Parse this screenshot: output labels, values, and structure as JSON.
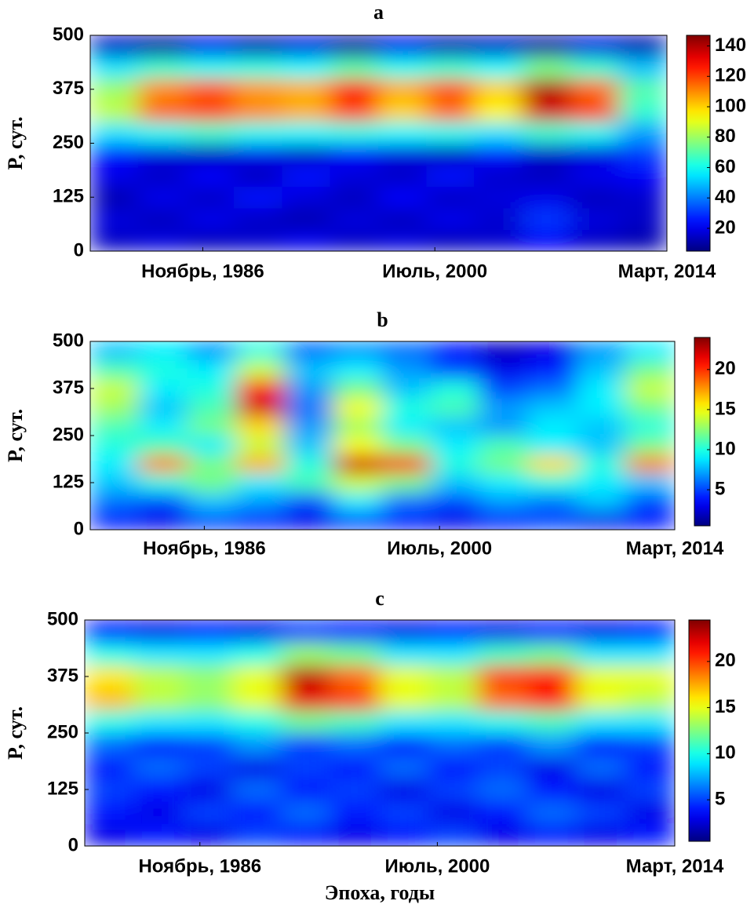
{
  "chart_data": [
    {
      "type": "heatmap",
      "title": "a",
      "ylabel": "P, сут.",
      "colormap": "jet",
      "x_bins": [
        1980.2,
        1983.03,
        1985.86,
        1988.69,
        1991.52,
        1994.35,
        1997.18,
        2000.01,
        2002.84,
        2005.67,
        2008.5,
        2011.33,
        2014.17
      ],
      "y_bins": [
        0,
        50,
        100,
        150,
        200,
        250,
        300,
        350,
        400,
        450,
        500
      ],
      "z": [
        [
          15,
          18,
          14,
          16,
          20,
          15,
          18,
          14,
          16,
          22,
          15,
          12
        ],
        [
          18,
          14,
          20,
          15,
          12,
          18,
          14,
          20,
          16,
          30,
          18,
          15
        ],
        [
          12,
          20,
          15,
          25,
          18,
          14,
          22,
          15,
          18,
          20,
          14,
          16
        ],
        [
          20,
          15,
          22,
          14,
          25,
          18,
          15,
          24,
          16,
          14,
          20,
          22
        ],
        [
          25,
          18,
          14,
          20,
          15,
          22,
          18,
          14,
          25,
          15,
          18,
          30
        ],
        [
          55,
          60,
          65,
          60,
          58,
          62,
          58,
          60,
          55,
          65,
          60,
          45
        ],
        [
          85,
          115,
          120,
          110,
          105,
          120,
          100,
          115,
          95,
          135,
          120,
          65
        ],
        [
          80,
          110,
          118,
          108,
          105,
          128,
          105,
          118,
          100,
          140,
          115,
          70
        ],
        [
          55,
          65,
          60,
          62,
          58,
          70,
          60,
          65,
          58,
          75,
          65,
          50
        ],
        [
          15,
          10,
          20,
          12,
          18,
          10,
          20,
          12,
          15,
          10,
          18,
          12
        ]
      ],
      "xlim": [
        1980.2,
        2014.17
      ],
      "xticks": [
        {
          "value": 1986.83,
          "label": "Ноябрь, 1986"
        },
        {
          "value": 2000.5,
          "label": "Июль, 2000"
        },
        {
          "value": 2014.17,
          "label": "Март, 2014"
        }
      ],
      "ylim": [
        0,
        500
      ],
      "yticks": [
        0,
        125,
        250,
        375,
        500
      ],
      "clim": [
        5,
        147
      ],
      "cticks": [
        20,
        40,
        60,
        80,
        100,
        120,
        140
      ]
    },
    {
      "type": "heatmap",
      "title": "b",
      "ylabel": "P, сут.",
      "colormap": "jet",
      "x_bins": [
        1980.2,
        1983.03,
        1985.86,
        1988.69,
        1991.52,
        1994.35,
        1997.18,
        2000.01,
        2002.84,
        2005.67,
        2008.5,
        2011.33,
        2014.17
      ],
      "y_bins": [
        0,
        50,
        100,
        150,
        200,
        250,
        300,
        350,
        400,
        450,
        500
      ],
      "z": [
        [
          4,
          3,
          5,
          4,
          3,
          5,
          4,
          3,
          4,
          5,
          3,
          4
        ],
        [
          6,
          5,
          8,
          7,
          5,
          9,
          6,
          5,
          7,
          6,
          8,
          5
        ],
        [
          8,
          10,
          12,
          9,
          11,
          14,
          12,
          8,
          9,
          10,
          9,
          8
        ],
        [
          9,
          18,
          12,
          17,
          10,
          22,
          20,
          10,
          12,
          16,
          10,
          18
        ],
        [
          10,
          11,
          9,
          14,
          8,
          15,
          12,
          9,
          11,
          9,
          8,
          12
        ],
        [
          11,
          9,
          12,
          16,
          7,
          13,
          9,
          8,
          7,
          9,
          8,
          10
        ],
        [
          13,
          8,
          11,
          22,
          6,
          15,
          10,
          11,
          7,
          8,
          9,
          12
        ],
        [
          14,
          9,
          10,
          21,
          7,
          12,
          8,
          10,
          5,
          6,
          9,
          14
        ],
        [
          11,
          10,
          9,
          14,
          8,
          9,
          7,
          5,
          3,
          4,
          8,
          12
        ],
        [
          8,
          9,
          7,
          10,
          6,
          7,
          6,
          4,
          2,
          3,
          7,
          9
        ]
      ],
      "xlim": [
        1980.2,
        2014.17
      ],
      "xticks": [
        {
          "value": 1986.83,
          "label": "Ноябрь, 1986"
        },
        {
          "value": 2000.5,
          "label": "Июль, 2000"
        },
        {
          "value": 2014.17,
          "label": "Март, 2014"
        }
      ],
      "ylim": [
        0,
        500
      ],
      "yticks": [
        0,
        125,
        250,
        375,
        500
      ],
      "clim": [
        0.5,
        24
      ],
      "cticks": [
        5,
        10,
        15,
        20
      ]
    },
    {
      "type": "heatmap",
      "title": "c",
      "ylabel": "P, сут.",
      "xlabel": "Эпоха, годы",
      "colormap": "jet",
      "x_bins": [
        1980.2,
        1983.03,
        1985.86,
        1988.69,
        1991.52,
        1994.35,
        1997.18,
        2000.01,
        2002.84,
        2005.67,
        2008.5,
        2011.33,
        2014.17
      ],
      "y_bins": [
        0,
        50,
        100,
        150,
        200,
        250,
        300,
        350,
        400,
        450,
        500
      ],
      "z": [
        [
          3,
          4,
          3,
          5,
          4,
          3,
          4,
          5,
          3,
          4,
          3,
          4
        ],
        [
          4,
          3,
          5,
          4,
          6,
          4,
          5,
          3,
          4,
          6,
          5,
          3
        ],
        [
          5,
          4,
          3,
          6,
          4,
          5,
          3,
          5,
          6,
          4,
          3,
          5
        ],
        [
          4,
          6,
          5,
          3,
          5,
          4,
          6,
          4,
          5,
          3,
          6,
          4
        ],
        [
          6,
          4,
          5,
          7,
          5,
          6,
          4,
          6,
          5,
          7,
          4,
          5
        ],
        [
          10,
          9,
          9,
          10,
          12,
          11,
          9,
          9,
          10,
          11,
          9,
          9
        ],
        [
          17,
          14,
          13,
          15,
          22,
          20,
          15,
          14,
          19,
          21,
          15,
          14
        ],
        [
          16,
          14,
          13,
          15,
          23,
          19,
          15,
          14,
          20,
          21,
          15,
          15
        ],
        [
          10,
          9,
          9,
          10,
          13,
          12,
          9,
          9,
          11,
          12,
          9,
          9
        ],
        [
          4,
          3,
          4,
          3,
          5,
          4,
          3,
          4,
          3,
          4,
          3,
          4
        ]
      ],
      "xlim": [
        1980.2,
        2014.17
      ],
      "xticks": [
        {
          "value": 1986.83,
          "label": "Ноябрь, 1986"
        },
        {
          "value": 2000.5,
          "label": "Июль, 2000"
        },
        {
          "value": 2014.17,
          "label": "Март, 2014"
        }
      ],
      "ylim": [
        0,
        500
      ],
      "yticks": [
        0,
        125,
        250,
        375,
        500
      ],
      "clim": [
        0.5,
        24.5
      ],
      "cticks": [
        5,
        10,
        15,
        20
      ]
    }
  ]
}
